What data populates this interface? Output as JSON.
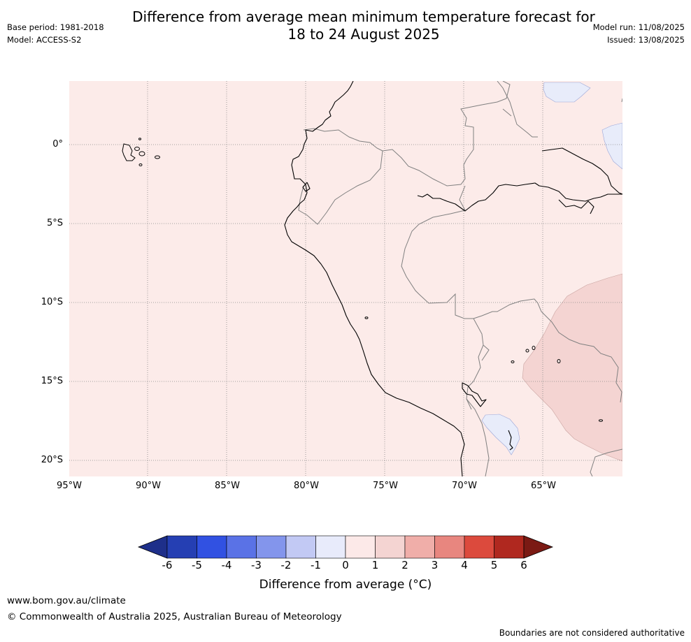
{
  "header": {
    "title_line1": "Difference from average mean minimum temperature forecast for",
    "title_line2": "18 to 24 August 2025",
    "base_period": "Base period: 1981-2018",
    "model": "Model: ACCESS-S2",
    "model_run": "Model run: 11/08/2025",
    "issued": "Issued: 13/08/2025"
  },
  "map": {
    "background_color": "#fcebe9",
    "lat_labels": [
      "0°",
      "5°S",
      "10°S",
      "15°S",
      "20°S"
    ],
    "lon_labels": [
      "95°W",
      "90°W",
      "85°W",
      "80°W",
      "75°W",
      "70°W",
      "65°W"
    ],
    "anomaly_regions": [
      {
        "name": "1 to 2 °C warmer",
        "color": "#f4d4d2"
      },
      {
        "name": "0 to -1 °C",
        "color": "#e8ecfa"
      }
    ]
  },
  "colorbar": {
    "ticks": [
      "-6",
      "-5",
      "-4",
      "-3",
      "-2",
      "-1",
      "0",
      "1",
      "2",
      "3",
      "4",
      "5",
      "6"
    ],
    "colors": [
      "#1e2f8a",
      "#253fb3",
      "#3151e2",
      "#5a72e6",
      "#8395ec",
      "#c2c9f4",
      "#e8ebfb",
      "#fce9e8",
      "#f4d4d2",
      "#f0aea9",
      "#e8867f",
      "#dc4a3d",
      "#b0281f",
      "#7b1a14"
    ],
    "label": "Difference from average (°C)"
  },
  "footer": {
    "website": "www.bom.gov.au/climate",
    "copyright": "© Commonwealth of Australia 2025, Australian Bureau of Meteorology",
    "disclaimer": "Boundaries are not considered authoritative"
  }
}
